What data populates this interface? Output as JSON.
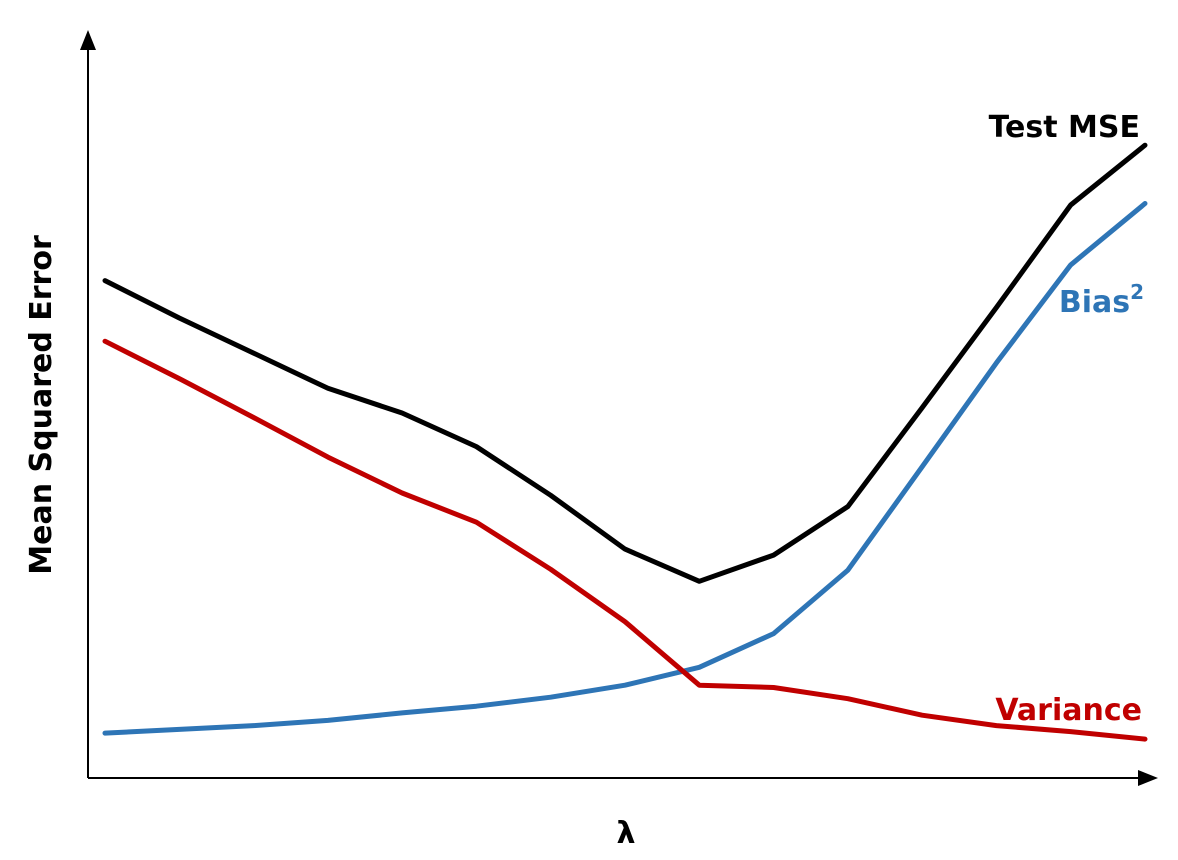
{
  "chart_data": {
    "type": "line",
    "title": "",
    "xlabel": "λ",
    "ylabel": "Mean Squared Error",
    "xlim": [
      0,
      14
    ],
    "ylim": [
      0,
      100
    ],
    "grid": false,
    "legend": "inline labels at right end of each line",
    "x": [
      0,
      1,
      2,
      3,
      4,
      5,
      6,
      7,
      8,
      9,
      10,
      11,
      12,
      13,
      14
    ],
    "series": [
      {
        "name": "Test MSE",
        "color": "#000000",
        "values": [
          66.5,
          61.5,
          56.8,
          52.1,
          48.8,
          44.3,
          37.8,
          30.6,
          26.3,
          29.8,
          36.3,
          49.5,
          62.9,
          76.6,
          84.6
        ]
      },
      {
        "name": "Bias",
        "name_superscript": "2",
        "color": "#2e75b6",
        "values": [
          6.0,
          6.5,
          7.0,
          7.7,
          8.7,
          9.6,
          10.8,
          12.4,
          14.8,
          19.3,
          27.8,
          41.6,
          55.5,
          68.6,
          76.8
        ]
      },
      {
        "name": "Variance",
        "color": "#c00000",
        "values": [
          58.4,
          53.4,
          48.2,
          42.9,
          38.1,
          34.2,
          27.9,
          20.9,
          12.4,
          12.1,
          10.6,
          8.4,
          7.0,
          6.2,
          5.2
        ]
      }
    ]
  }
}
